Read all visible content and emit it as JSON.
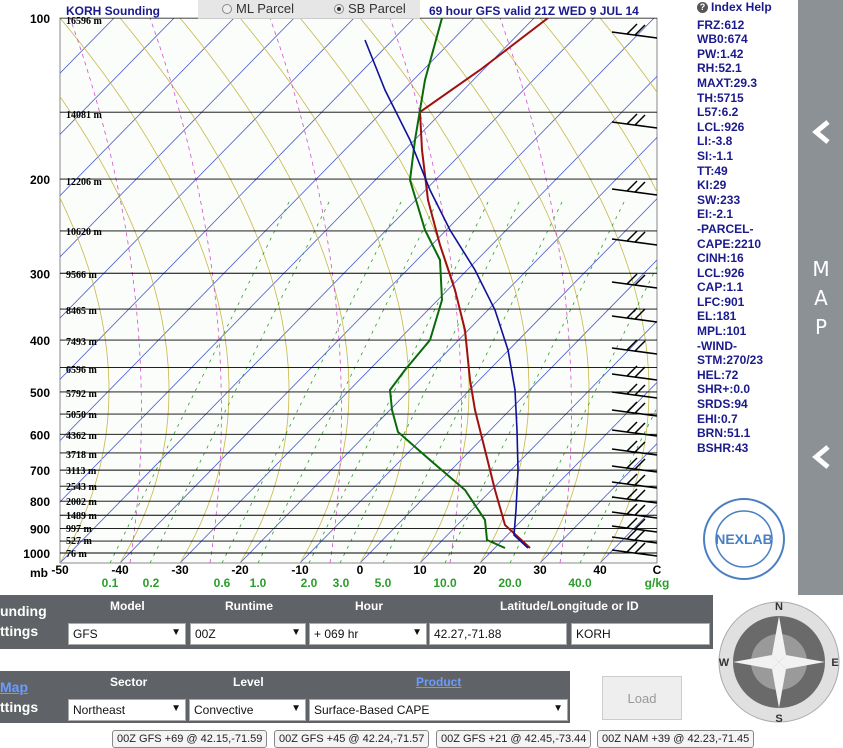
{
  "header": {
    "station_title": "KORH Sounding",
    "model_title": "69 hour GFS valid 21Z WED   9 JUL 14",
    "radio_ml": "ML Parcel",
    "radio_sb": "SB Parcel",
    "selected_parcel": "SB Parcel"
  },
  "pressure_labels": [
    "100",
    "200",
    "300",
    "400",
    "500",
    "600",
    "700",
    "800",
    "900",
    "1000"
  ],
  "mb_label": "mb",
  "height_labels": [
    "16596 m",
    "14081 m",
    "12206 m",
    "10620 m",
    "9566 m",
    "8465 m",
    "7493 m",
    "6596 m",
    "5792 m",
    "5050 m",
    "4362 m",
    "3718 m",
    "3113 m",
    "2543 m",
    "2002 m",
    "1489 m",
    "997 m",
    "527 m",
    "76 m"
  ],
  "temp_ticks": [
    "-50",
    "-40",
    "-30",
    "-20",
    "-10",
    "0",
    "10",
    "20",
    "30",
    "40"
  ],
  "temp_unit": "C",
  "mixing_ratio_ticks": [
    "0.1",
    "0.2",
    "0.6",
    "1.0",
    "2.0",
    "3.0",
    "5.0",
    "10.0",
    "20.0",
    "40.0"
  ],
  "mixing_ratio_unit": "g/kg",
  "indices": {
    "help_label": "Index Help",
    "items": [
      "FRZ:612",
      "WB0:674",
      "PW:1.42",
      "RH:52.1",
      "MAXT:29.3",
      "TH:5715",
      "L57:6.2",
      "LCL:926",
      "LI:-3.8",
      "SI:-1.1",
      "TT:49",
      "KI:29",
      "SW:233",
      "EI:-2.1",
      "-PARCEL-",
      "CAPE:2210",
      "CINH:16",
      "LCL:926",
      "CAP:1.1",
      "LFC:901",
      "EL:181",
      "MPL:101",
      "-WIND-",
      "STM:270/23",
      "HEL:72",
      "SHR+:0.0",
      "SRDS:94",
      "EHI:0.7",
      "BRN:51.1",
      "BSHR:43"
    ]
  },
  "side_panel": {
    "map_label": "MAP"
  },
  "logo": {
    "text": "NEXLAB",
    "ring_top": "Next Generation Weather Lab",
    "ring_bottom": "College of DuPage"
  },
  "settings": {
    "sounding_label_1": "unding",
    "sounding_label_2": "ttings",
    "headers": {
      "model": "Model",
      "runtime": "Runtime",
      "hour": "Hour",
      "latlon": "Latitude/Longitude or ID"
    },
    "model_value": "GFS",
    "runtime_value": "00Z",
    "hour_value": "+ 069 hr",
    "latlon_value": "42.27,-71.88",
    "id_value": "KORH",
    "map_label_1": "Map",
    "map_label_2": "ttings",
    "headers2": {
      "sector": "Sector",
      "level": "Level",
      "product": "Product"
    },
    "sector_value": "Northeast",
    "level_value": "Convective",
    "product_value": "Surface-Based CAPE",
    "load_label": "Load"
  },
  "compass": {
    "n": "N",
    "s": "S",
    "e": "E",
    "w": "W"
  },
  "quick_links": [
    "00Z GFS +69 @ 42.15,-71.59",
    "00Z GFS +45 @ 42.24,-71.57",
    "00Z GFS +21 @ 42.45,-73.44",
    "00Z NAM +39 @ 42.23,-71.45"
  ],
  "colors": {
    "temp": "#a01010",
    "dewpoint": "#0a6a0a",
    "parcel": "#10109a",
    "title": "#1a1a8c"
  }
}
